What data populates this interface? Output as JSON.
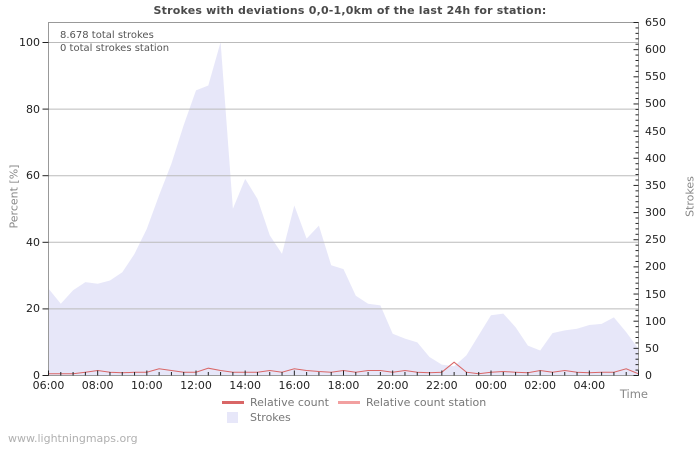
{
  "title": "Strokes with deviations 0,0-1,0km of the last 24h for station:",
  "annotations": {
    "total_strokes": "8.678 total strokes",
    "total_strokes_station": "0 total strokes station"
  },
  "legend": {
    "relative_count": "Relative count",
    "relative_count_station": "Relative count station",
    "strokes": "Strokes"
  },
  "footer": "www.lightningmaps.org",
  "colors": {
    "grid": "#bbbbbb",
    "plot_border": "#999999",
    "tick": "#222222",
    "title_text": "#4a4a4a",
    "axis_title_text": "#888888",
    "legend_text": "#777777"
  },
  "chart_data": {
    "type": "area",
    "title": "Strokes with deviations 0,0-1,0km of the last 24h for station:",
    "x_start": "06:00",
    "x_interval_minutes": 30,
    "x_tick_labels": [
      "06:00",
      "08:00",
      "10:00",
      "12:00",
      "14:00",
      "16:00",
      "18:00",
      "20:00",
      "22:00",
      "00:00",
      "02:00",
      "04:00"
    ],
    "x_minor_tick_minutes": 30,
    "xlabel": "Time",
    "grid": "horizontal-only",
    "legend_position": "bottom-center",
    "y_left": {
      "label": "Percent  [%]",
      "ticks": [
        0,
        20,
        40,
        60,
        80,
        100
      ],
      "max": 100
    },
    "y_right": {
      "label": "Strokes",
      "ticks": [
        0,
        50,
        100,
        150,
        200,
        250,
        300,
        350,
        400,
        450,
        500,
        550,
        600,
        650
      ],
      "max": 650,
      "minor_step": 10
    },
    "series": [
      {
        "name": "Strokes",
        "style": "area",
        "axis": "right",
        "color": "#e7e7f9",
        "values": [
          160,
          132,
          157,
          172,
          169,
          175,
          190,
          224,
          270,
          332,
          390,
          461,
          525,
          534,
          614,
          307,
          362,
          325,
          258,
          224,
          313,
          252,
          276,
          203,
          196,
          147,
          132,
          129,
          77,
          68,
          61,
          34,
          20,
          17,
          37,
          74,
          111,
          114,
          89,
          55,
          46,
          78,
          83,
          86,
          93,
          95,
          107,
          80,
          49
        ]
      },
      {
        "name": "Relative count",
        "style": "line",
        "axis": "left",
        "color": "#d96666",
        "values": [
          0.5,
          0.5,
          0.5,
          1,
          1.5,
          1,
          0.8,
          1,
          1,
          2,
          1.5,
          1,
          1,
          2.2,
          1.5,
          1,
          1,
          1,
          1.5,
          1,
          2,
          1.5,
          1.2,
          1,
          1.5,
          1,
          1.5,
          1.5,
          1,
          1.5,
          1,
          0.8,
          1,
          4,
          1,
          0.5,
          1,
          1.2,
          1,
          0.8,
          1.5,
          1,
          1.5,
          1,
          0.8,
          1,
          1,
          2,
          0.5
        ]
      },
      {
        "name": "Relative count station",
        "style": "line",
        "axis": "left",
        "color": "#f2a0a0",
        "values": [
          0,
          0,
          0,
          0,
          0,
          0,
          0,
          0,
          0,
          0,
          0,
          0,
          0,
          0,
          0,
          0,
          0,
          0,
          0,
          0,
          0,
          0,
          0,
          0,
          0,
          0,
          0,
          0,
          0,
          0,
          0,
          0,
          0,
          0,
          0,
          0,
          0,
          0,
          0,
          0,
          0,
          0,
          0,
          0,
          0,
          0,
          0,
          0,
          0
        ]
      }
    ]
  }
}
